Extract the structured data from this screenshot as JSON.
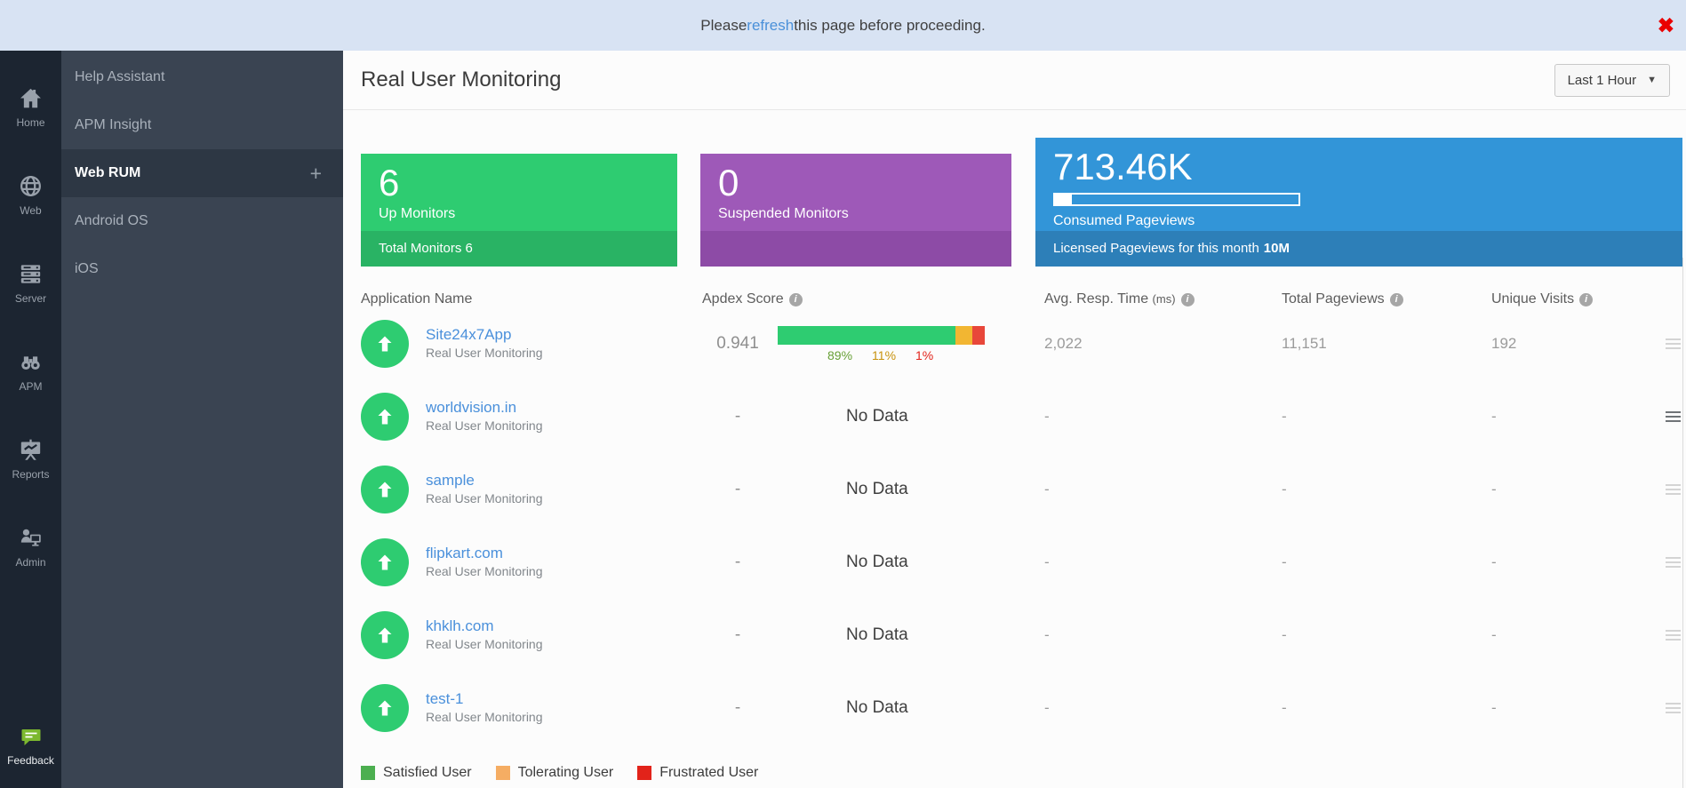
{
  "banner": {
    "message_prefix": "Please ",
    "link_text": "refresh",
    "message_suffix": " this page before proceeding.",
    "close_icon": "✖"
  },
  "primary_nav": {
    "items": [
      "Home",
      "Web",
      "Server",
      "APM",
      "Reports",
      "Admin"
    ],
    "feedback_label": "Feedback"
  },
  "secondary_nav": {
    "items": [
      "Help Assistant",
      "APM Insight",
      "Web RUM",
      "Android OS",
      "iOS"
    ],
    "selected_item": "Web RUM",
    "add_icon": "+"
  },
  "page": {
    "title": "Real User Monitoring",
    "time_range": "Last 1 Hour",
    "caret": "▼"
  },
  "cards": {
    "up": {
      "value": "6",
      "label": "Up Monitors",
      "footer": "Total Monitors 6",
      "color": "#2ecc71",
      "footer_color": "#29b364"
    },
    "suspended": {
      "value": "0",
      "label": "Suspended Monitors",
      "color": "#9e59b8",
      "footer_color": "#8d4ba6"
    },
    "pageviews": {
      "value": "713.46K",
      "label": "Consumed Pageviews",
      "footer_text": "Licensed Pageviews for this month",
      "footer_value": "10M",
      "progress_pct": 7,
      "color": "#3295d8",
      "footer_color": "#2d7fb8"
    }
  },
  "table": {
    "headers": {
      "application": "Application Name",
      "apdex": "Apdex Score",
      "avg_resp": "Avg. Resp. Time",
      "avg_resp_unit": "(ms)",
      "total_pageviews": "Total Pageviews",
      "unique_visits": "Unique Visits"
    },
    "rows": [
      {
        "name": "Site24x7App",
        "type": "Real User Monitoring",
        "apdex": "0.941",
        "avg_resp": "2,022",
        "pageviews": "11,151",
        "visits": "192",
        "apdex_bar": {
          "satisfied_pct": "89%",
          "tolerating_pct": "11%",
          "frustrated_pct": "1%",
          "widths": [
            86,
            8,
            6
          ],
          "colors": {
            "satisfied": "#2ecc71",
            "tolerating": "#f2b632",
            "frustrated": "#e8473a"
          }
        }
      },
      {
        "name": "worldvision.in",
        "type": "Real User Monitoring",
        "apdex": "-",
        "no_data": "No Data",
        "avg_resp": "-",
        "pageviews": "-",
        "visits": "-"
      },
      {
        "name": "sample",
        "type": "Real User Monitoring",
        "apdex": "-",
        "no_data": "No Data",
        "avg_resp": "-",
        "pageviews": "-",
        "visits": "-"
      },
      {
        "name": "flipkart.com",
        "type": "Real User Monitoring",
        "apdex": "-",
        "no_data": "No Data",
        "avg_resp": "-",
        "pageviews": "-",
        "visits": "-"
      },
      {
        "name": "khklh.com",
        "type": "Real User Monitoring",
        "apdex": "-",
        "no_data": "No Data",
        "avg_resp": "-",
        "pageviews": "-",
        "visits": "-"
      },
      {
        "name": "test-1",
        "type": "Real User Monitoring",
        "apdex": "-",
        "no_data": "No Data",
        "avg_resp": "-",
        "pageviews": "-",
        "visits": "-"
      }
    ]
  },
  "legend": {
    "satisfied": "Satisfied User",
    "tolerating": "Tolerating User",
    "frustrated": "Frustrated User",
    "colors": {
      "satisfied": "#4caf50",
      "tolerating": "#f5ad63",
      "frustrated": "#e2231a"
    }
  }
}
